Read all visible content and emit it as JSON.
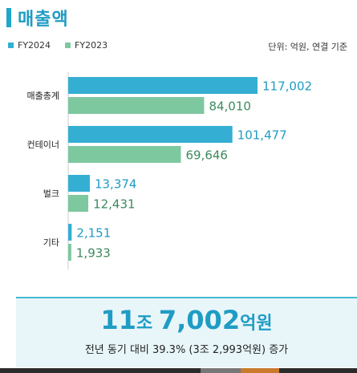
{
  "header": {
    "title": "매출액",
    "unit": "단위: 억원, 연결 기준"
  },
  "colors": {
    "fy2024": "#35aed3",
    "fy2023": "#7ec8a0",
    "accent": "#1f9cc4"
  },
  "chart_data": {
    "type": "bar",
    "orientation": "horizontal",
    "categories": [
      "매출총계",
      "컨테이너",
      "벌크",
      "기타"
    ],
    "series": [
      {
        "name": "FY2024",
        "values": [
          117002,
          101477,
          13374,
          2151
        ],
        "labels": [
          "117,002",
          "101,477",
          "13,374",
          "2,151"
        ]
      },
      {
        "name": "FY2023",
        "values": [
          84010,
          69646,
          12431,
          1933
        ],
        "labels": [
          "84,010",
          "69,646",
          "12,431",
          "1,933"
        ]
      }
    ],
    "legend": "top-left",
    "grid": false
  },
  "summary": {
    "num1": "11",
    "unit1": "조 ",
    "num2": "7,002",
    "unit2": "억원",
    "sub": "전년 동기 대비 39.3% (3조 2,993억원) 증가"
  }
}
